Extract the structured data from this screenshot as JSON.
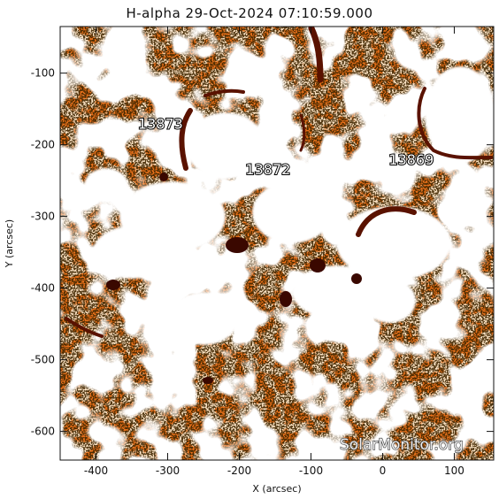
{
  "title": "H-alpha 29-Oct-2024 07:10:59.000",
  "watermark": "SolarMonitor.org",
  "axes": {
    "xlabel": "X (arcsec)",
    "ylabel": "Y (arcsec)",
    "xlim": [
      -450,
      155
    ],
    "ylim": [
      -640,
      -35
    ],
    "xticks": [
      -400,
      -300,
      -200,
      -100,
      0,
      100
    ],
    "yticks": [
      -100,
      -200,
      -300,
      -400,
      -500,
      -600
    ],
    "xtick_labels": [
      "-400",
      "-300",
      "-200",
      "-100",
      "0",
      "100"
    ],
    "ytick_labels": [
      "-100",
      "-200",
      "-300",
      "-400",
      "-500",
      "-600"
    ]
  },
  "regions": [
    {
      "label": "13873",
      "x": -310,
      "y": -170
    },
    {
      "label": "13872",
      "x": -160,
      "y": -234
    },
    {
      "label": "13869",
      "x": 40,
      "y": -220
    }
  ],
  "colors": {
    "background_orange": "#e8701a",
    "plage_white": "#ffffff",
    "filament_dark": "#5a1200",
    "noise_black": "#1a0800"
  }
}
